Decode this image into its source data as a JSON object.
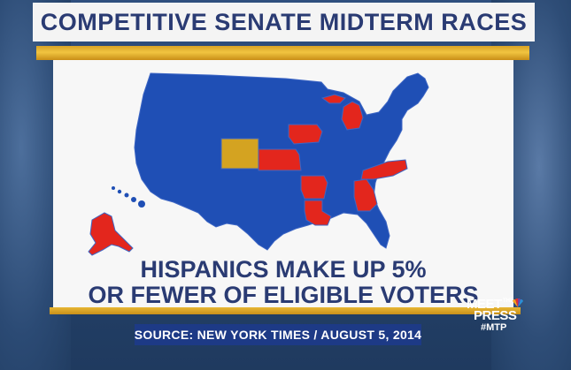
{
  "title": "COMPETITIVE SENATE MIDTERM RACES",
  "caption": {
    "line1": "HISPANICS MAKE UP 5%",
    "line2": "OR FEWER OF ELIGIBLE VOTERS"
  },
  "source": "SOURCE: NEW YORK TIMES / AUGUST 5, 2014",
  "logo": {
    "meet": "MEET",
    "the": "THE",
    "press": "PRESS",
    "hashtag": "#MTP"
  },
  "map": {
    "highlighted_states_red": [
      "Alaska",
      "Iowa",
      "Kansas",
      "Michigan",
      "Arkansas",
      "Louisiana",
      "Georgia",
      "North Carolina"
    ],
    "highlighted_states_gold": [
      "Colorado"
    ],
    "colors": {
      "base": "#1f4fb5",
      "highlight": "#e3261d",
      "other": "#d4a321",
      "border": "#3d66c4"
    }
  }
}
